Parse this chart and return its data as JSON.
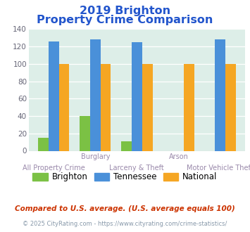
{
  "title_line1": "2019 Brighton",
  "title_line2": "Property Crime Comparison",
  "categories": [
    "All Property Crime",
    "Burglary",
    "Larceny & Theft",
    "Arson",
    "Motor Vehicle Theft"
  ],
  "category_labels_top": [
    "",
    "Burglary",
    "",
    "Arson",
    ""
  ],
  "category_labels_bottom": [
    "All Property Crime",
    "",
    "Larceny & Theft",
    "",
    "Motor Vehicle Theft"
  ],
  "brighton": [
    15,
    40,
    11,
    0,
    0
  ],
  "tennessee": [
    126,
    128,
    125,
    0,
    128
  ],
  "national": [
    100,
    100,
    100,
    100,
    100
  ],
  "brighton_color": "#7bc144",
  "tennessee_color": "#4a90d9",
  "national_color": "#f5a623",
  "ylim": [
    0,
    140
  ],
  "yticks": [
    0,
    20,
    40,
    60,
    80,
    100,
    120,
    140
  ],
  "background_color": "#ddeee8",
  "title_color": "#2255cc",
  "label_color": "#9988aa",
  "footnote1": "Compared to U.S. average. (U.S. average equals 100)",
  "footnote2": "© 2025 CityRating.com - https://www.cityrating.com/crime-statistics/",
  "footnote1_color": "#cc3300",
  "footnote2_color": "#8899aa",
  "legend_labels": [
    "Brighton",
    "Tennessee",
    "National"
  ]
}
